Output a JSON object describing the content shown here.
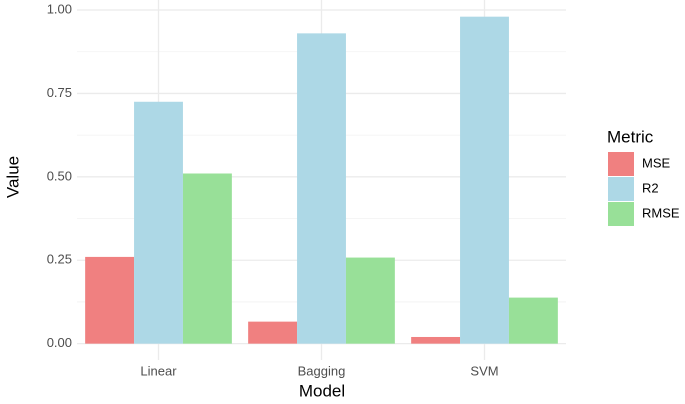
{
  "chart_data": {
    "type": "bar",
    "x_label": "Model",
    "y_label": "Value",
    "legend_title": "Metric",
    "categories": [
      "Linear",
      "Bagging",
      "SVM"
    ],
    "series": [
      {
        "name": "MSE",
        "color": "#f08080",
        "values": [
          0.26,
          0.066,
          0.02
        ]
      },
      {
        "name": "R2",
        "color": "#add8e6",
        "values": [
          0.725,
          0.93,
          0.98
        ]
      },
      {
        "name": "RMSE",
        "color": "#98e098",
        "values": [
          0.51,
          0.258,
          0.138
        ]
      }
    ],
    "ylim": [
      -0.049,
      1.03
    ],
    "yticks": [
      {
        "value": 0,
        "label": "0.00"
      },
      {
        "value": 0.25,
        "label": "0.25"
      },
      {
        "value": 0.5,
        "label": "0.50"
      },
      {
        "value": 0.75,
        "label": "0.75"
      },
      {
        "value": 1,
        "label": "1.00"
      }
    ],
    "grid": true,
    "legend_position": "right"
  }
}
